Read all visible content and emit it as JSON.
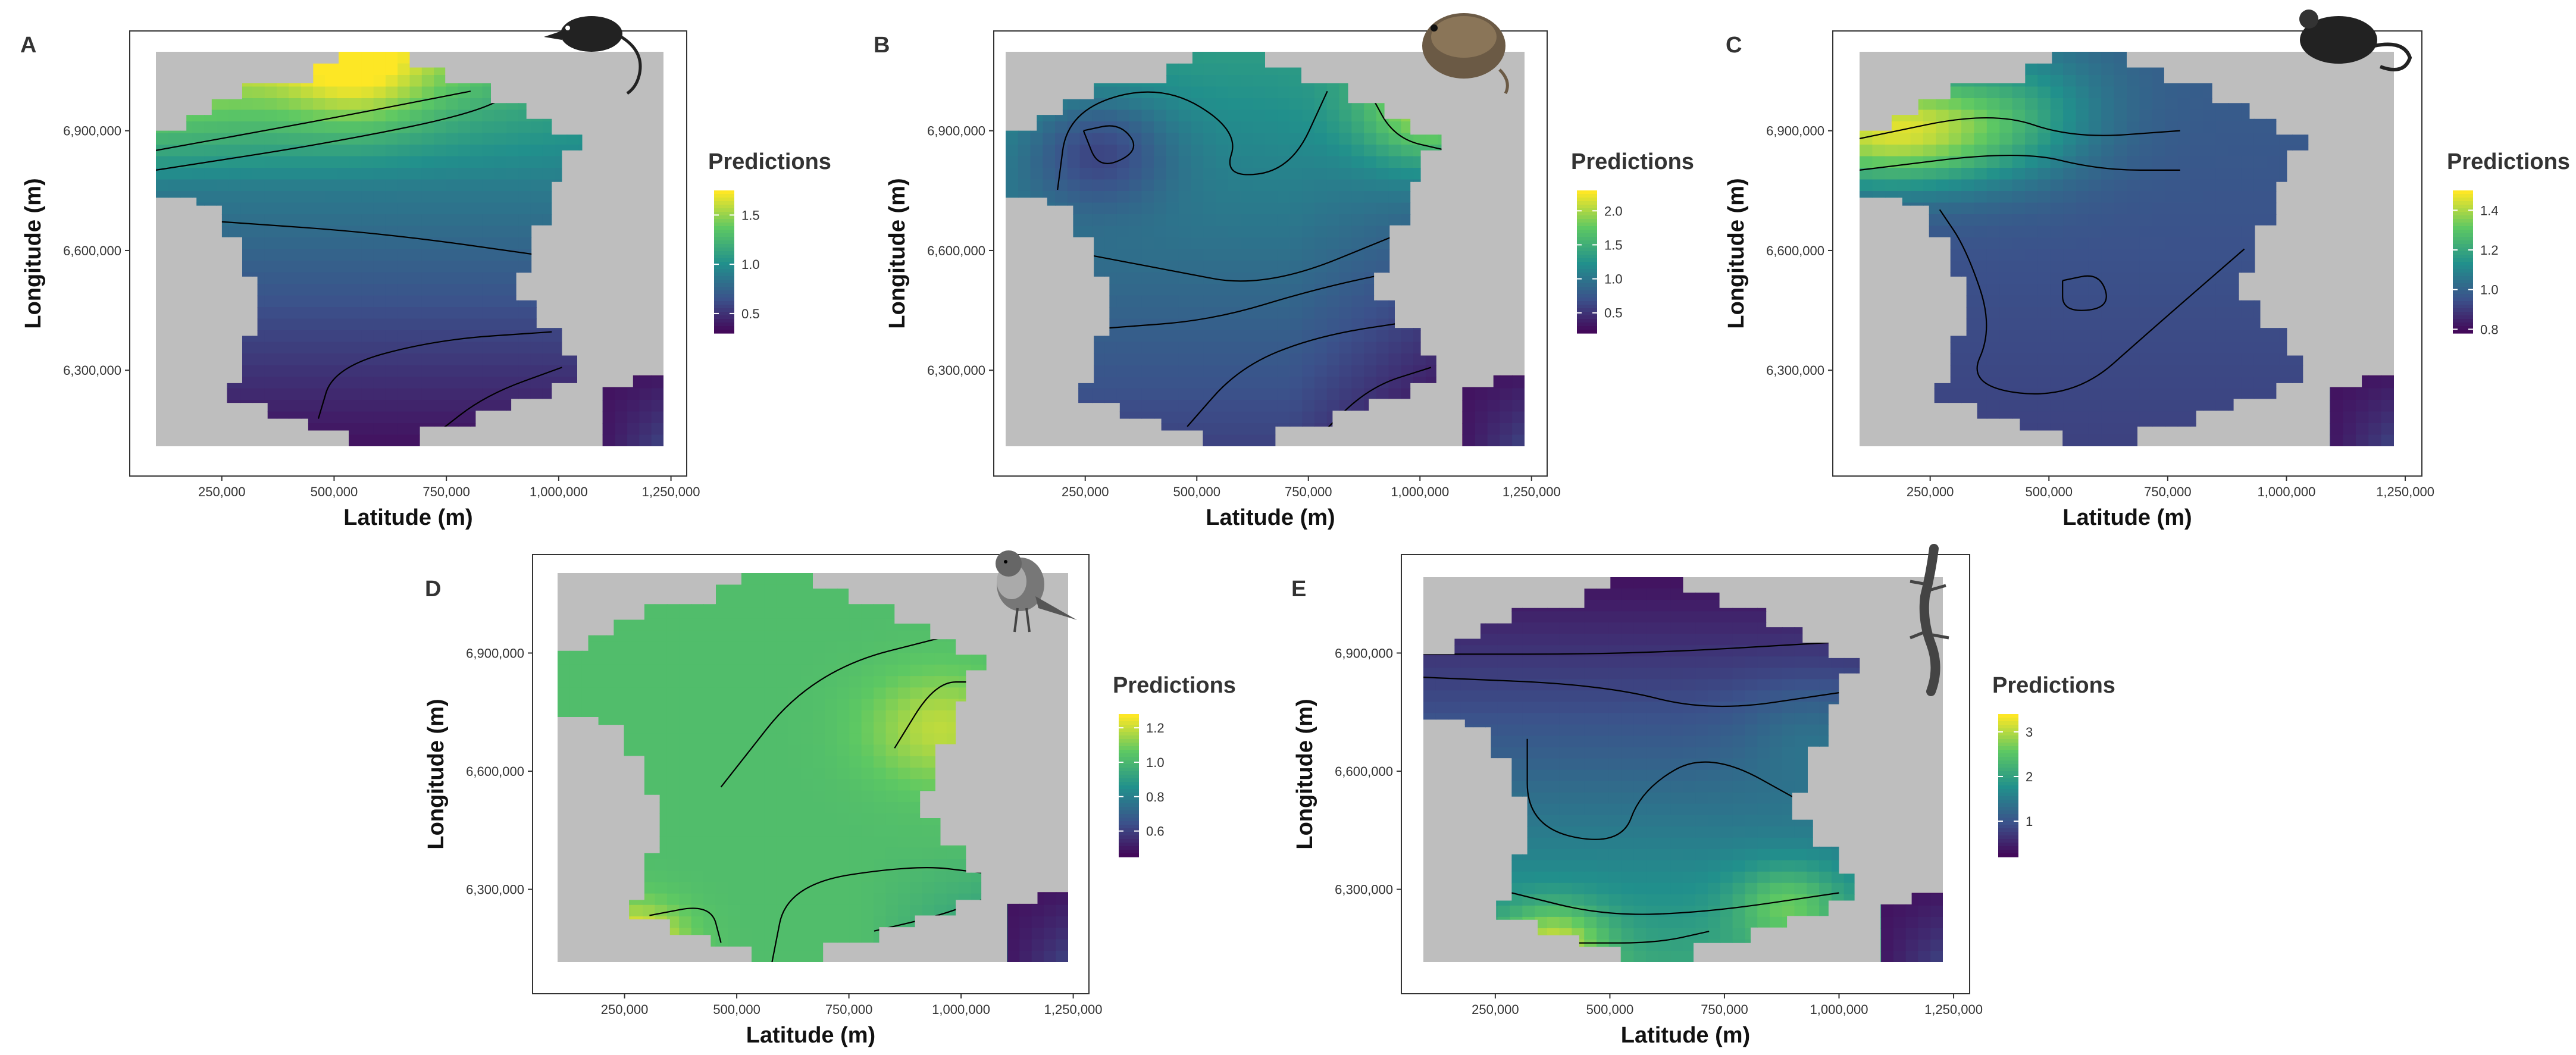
{
  "chart_data": [
    {
      "panel": "A",
      "type": "heatmap",
      "animal_icon": "shrew-icon",
      "xlabel": "Latitude (m)",
      "ylabel": "Longitude (m)",
      "xticks": [
        "250,000",
        "500,000",
        "750,000",
        "1,000,000",
        "1,250,000"
      ],
      "yticks": [
        "6,300,000",
        "6,600,000",
        "6,900,000"
      ],
      "xlim": [
        45000,
        1285000
      ],
      "ylim": [
        6035000,
        7150000
      ],
      "legend": {
        "title": "Predictions",
        "ticks": [
          "0.5",
          "1.0",
          "1.5"
        ],
        "values": [
          0.5,
          1.0,
          1.5
        ],
        "range": [
          0.3,
          1.75
        ]
      }
    },
    {
      "panel": "B",
      "type": "heatmap",
      "animal_icon": "vole-icon",
      "xlabel": "Latitude (m)",
      "ylabel": "Longitude (m)",
      "xticks": [
        "250,000",
        "500,000",
        "750,000",
        "1,000,000",
        "1,250,000"
      ],
      "yticks": [
        "6,300,000",
        "6,600,000",
        "6,900,000"
      ],
      "xlim": [
        45000,
        1285000
      ],
      "ylim": [
        6035000,
        7150000
      ],
      "legend": {
        "title": "Predictions",
        "ticks": [
          "0.5",
          "1.0",
          "1.5",
          "2.0"
        ],
        "values": [
          0.5,
          1.0,
          1.5,
          2.0
        ],
        "range": [
          0.2,
          2.3
        ]
      }
    },
    {
      "panel": "C",
      "type": "heatmap",
      "animal_icon": "mouse-icon",
      "xlabel": "Latitude (m)",
      "ylabel": "Longitude (m)",
      "xticks": [
        "250,000",
        "500,000",
        "750,000",
        "1,000,000",
        "1,250,000"
      ],
      "yticks": [
        "6,300,000",
        "6,600,000",
        "6,900,000"
      ],
      "xlim": [
        45000,
        1285000
      ],
      "ylim": [
        6035000,
        7150000
      ],
      "legend": {
        "title": "Predictions",
        "ticks": [
          "0.8",
          "1.0",
          "1.2",
          "1.4"
        ],
        "values": [
          0.8,
          1.0,
          1.2,
          1.4
        ],
        "range": [
          0.78,
          1.5
        ]
      }
    },
    {
      "panel": "D",
      "type": "heatmap",
      "animal_icon": "robin-icon",
      "xlabel": "Latitude (m)",
      "ylabel": "Longitude (m)",
      "xticks": [
        "250,000",
        "500,000",
        "750,000",
        "1,000,000",
        "1,250,000"
      ],
      "yticks": [
        "6,300,000",
        "6,600,000",
        "6,900,000"
      ],
      "xlim": [
        45000,
        1285000
      ],
      "ylim": [
        6035000,
        7150000
      ],
      "legend": {
        "title": "Predictions",
        "ticks": [
          "0.6",
          "0.8",
          "1.0",
          "1.2"
        ],
        "values": [
          0.6,
          0.8,
          1.0,
          1.2
        ],
        "range": [
          0.45,
          1.28
        ]
      }
    },
    {
      "panel": "E",
      "type": "heatmap",
      "animal_icon": "lizard-icon",
      "xlabel": "Latitude (m)",
      "ylabel": "Longitude (m)",
      "xticks": [
        "250,000",
        "500,000",
        "750,000",
        "1,000,000",
        "1,250,000"
      ],
      "yticks": [
        "6,300,000",
        "6,600,000",
        "6,900,000"
      ],
      "xlim": [
        45000,
        1285000
      ],
      "ylim": [
        6035000,
        7150000
      ],
      "legend": {
        "title": "Predictions",
        "ticks": [
          "1",
          "2",
          "3"
        ],
        "values": [
          1,
          2,
          3
        ],
        "range": [
          0.2,
          3.4
        ]
      }
    }
  ],
  "colors": {
    "viridis": [
      "#440154",
      "#3b528b",
      "#21908c",
      "#5dc863",
      "#fde725"
    ],
    "background": "#bebebe",
    "contour": "#000000"
  }
}
